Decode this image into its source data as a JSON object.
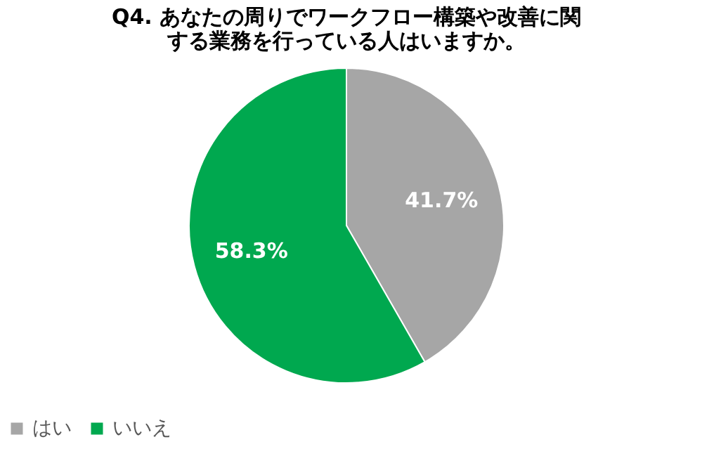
{
  "chart_data": {
    "type": "pie",
    "title": "Q4. あなたの周りでワークフロー構築や改善に関する業務を行っている人はいますか。",
    "categories": [
      "はい",
      "いいえ"
    ],
    "values": [
      41.7,
      58.3
    ],
    "colors": [
      "#a6a6a6",
      "#00a84f"
    ],
    "value_labels": [
      "41.7%",
      "58.3%"
    ],
    "legend": "bottom"
  }
}
